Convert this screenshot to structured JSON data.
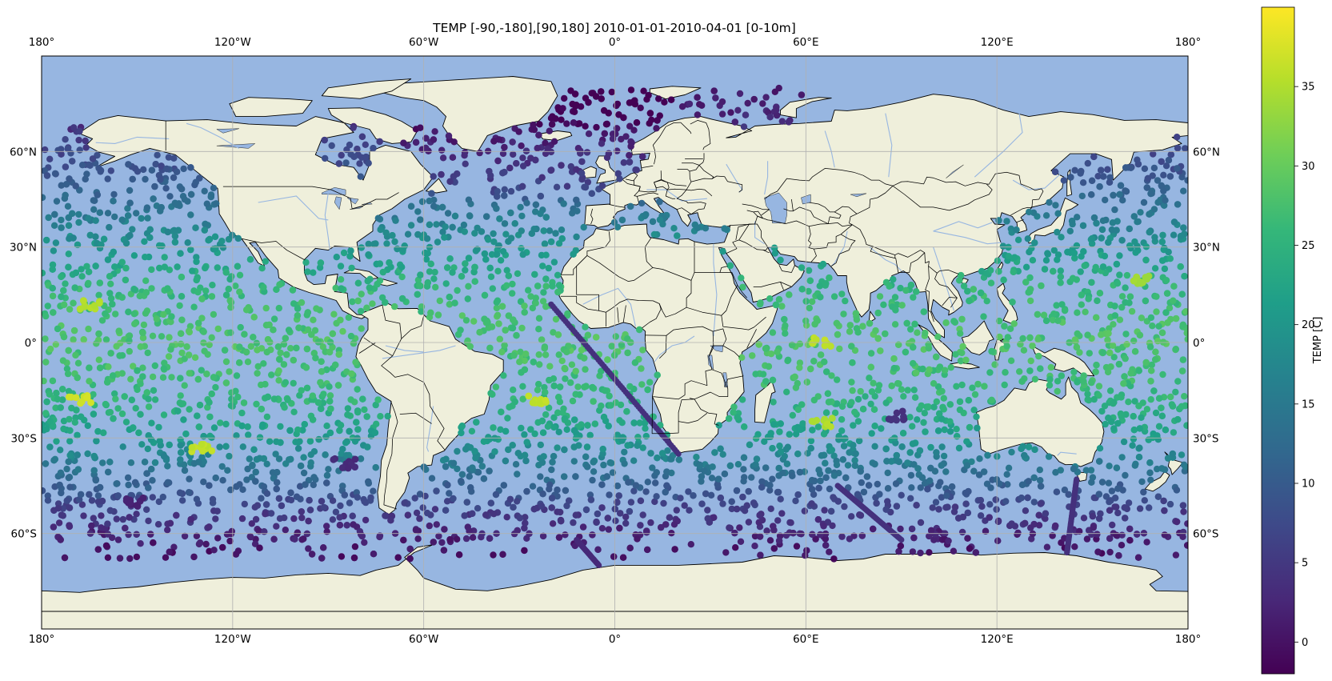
{
  "figure": {
    "title": "TEMP [-90,-180],[90,180] 2010-01-01-2010-04-01 [0-10m]"
  },
  "map": {
    "projection": "plate-carree",
    "extent": {
      "lon": [
        -180,
        180
      ],
      "lat": [
        -90,
        90
      ]
    },
    "ocean_color": "#97b6e1",
    "land_color": "#efefdb",
    "lake_color": "#97b6e1",
    "river_color": "#97b6e1",
    "coastline_color": "#000000",
    "gridlines": true,
    "gridline_color": "#b0b0b0",
    "lon_ticks": [
      {
        "value": -180,
        "label": "180°"
      },
      {
        "value": -120,
        "label": "120°W"
      },
      {
        "value": -60,
        "label": "60°W"
      },
      {
        "value": 0,
        "label": "0°"
      },
      {
        "value": 60,
        "label": "60°E"
      },
      {
        "value": 120,
        "label": "120°E"
      },
      {
        "value": 180,
        "label": "180°"
      }
    ],
    "lat_ticks": [
      {
        "value": 60,
        "label": "60°N"
      },
      {
        "value": 30,
        "label": "30°N"
      },
      {
        "value": 0,
        "label": "0°"
      },
      {
        "value": -30,
        "label": "30°S"
      },
      {
        "value": -60,
        "label": "60°S"
      }
    ]
  },
  "colorbar": {
    "label": "TEMP [C]",
    "colormap": "viridis",
    "min": -2,
    "max": 40,
    "ticks": [
      0,
      5,
      10,
      15,
      20,
      25,
      30,
      35
    ],
    "stops": [
      "#440154",
      "#482878",
      "#3e4989",
      "#31688e",
      "#26828e",
      "#1f9e89",
      "#35b779",
      "#6ece58",
      "#b5de2b",
      "#fde725"
    ]
  },
  "chart_data": {
    "type": "scatter",
    "variable": "TEMP",
    "units": "C",
    "depth": "0-10m",
    "time_range": [
      "2010-01-01",
      "2010-04-01"
    ],
    "temperature_by_latitude": [
      {
        "lat": 75,
        "temp": 1
      },
      {
        "lat": 60,
        "temp": 7
      },
      {
        "lat": 50,
        "temp": 10
      },
      {
        "lat": 40,
        "temp": 15
      },
      {
        "lat": 30,
        "temp": 20
      },
      {
        "lat": 20,
        "temp": 25
      },
      {
        "lat": 10,
        "temp": 27
      },
      {
        "lat": 0,
        "temp": 28
      },
      {
        "lat": -10,
        "temp": 27
      },
      {
        "lat": -20,
        "temp": 25
      },
      {
        "lat": -30,
        "temp": 21
      },
      {
        "lat": -40,
        "temp": 14
      },
      {
        "lat": -50,
        "temp": 7
      },
      {
        "lat": -60,
        "temp": 2
      },
      {
        "lat": -66,
        "temp": 0
      }
    ],
    "warm_patches": [
      {
        "lon": -168,
        "lat": -18,
        "temp": 37
      },
      {
        "lon": -130,
        "lat": -33,
        "temp": 36
      },
      {
        "lon": -165,
        "lat": 12,
        "temp": 35
      },
      {
        "lon": -25,
        "lat": -18,
        "temp": 36
      },
      {
        "lon": 65,
        "lat": 0,
        "temp": 36
      },
      {
        "lon": 65,
        "lat": -25,
        "temp": 35
      },
      {
        "lon": 165,
        "lat": 20,
        "temp": 34
      }
    ],
    "cold_patches": [
      {
        "lon": -85,
        "lat": -38,
        "temp": 3
      },
      {
        "lon": -150,
        "lat": -50,
        "temp": 2
      },
      {
        "lon": 88,
        "lat": -23,
        "temp": 4
      }
    ],
    "ship_tracks": [
      {
        "from": [
          -20,
          12
        ],
        "to": [
          20,
          -35
        ],
        "temp": 4
      },
      {
        "from": [
          -12,
          -62
        ],
        "to": [
          -5,
          -70
        ],
        "temp": 3
      },
      {
        "from": [
          145,
          -43
        ],
        "to": [
          142,
          -66
        ],
        "temp": 4
      },
      {
        "from": [
          70,
          -45
        ],
        "to": [
          90,
          -62
        ],
        "temp": 4
      }
    ]
  }
}
